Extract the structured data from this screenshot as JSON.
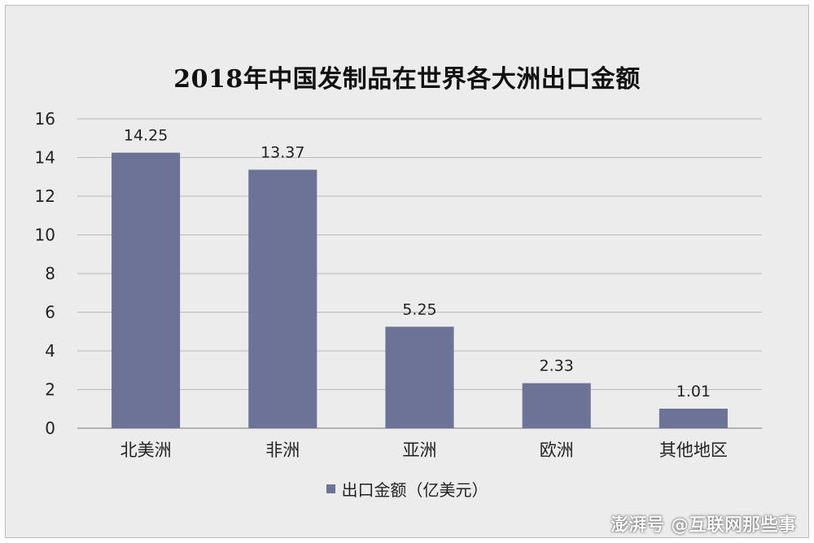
{
  "chart_data": {
    "type": "bar",
    "title": "2018年中国发制品在世界各大洲出口金额",
    "categories": [
      "北美洲",
      "非洲",
      "亚洲",
      "欧洲",
      "其他地区"
    ],
    "series": [
      {
        "name": "出口金额（亿美元）",
        "values": [
          14.25,
          13.37,
          5.25,
          2.33,
          1.01
        ],
        "data_labels": [
          "14.25",
          "13.37",
          "5.25",
          "2.33",
          "1.01"
        ]
      }
    ],
    "ylim": [
      0,
      16
    ],
    "yticks": [
      0,
      2,
      4,
      6,
      8,
      10,
      12,
      14,
      16
    ],
    "grid": true,
    "legend_position": "bottom",
    "bar_color": "#6d7397"
  },
  "watermark": "@互联网那些事",
  "watermark_logo": "澎湃号"
}
